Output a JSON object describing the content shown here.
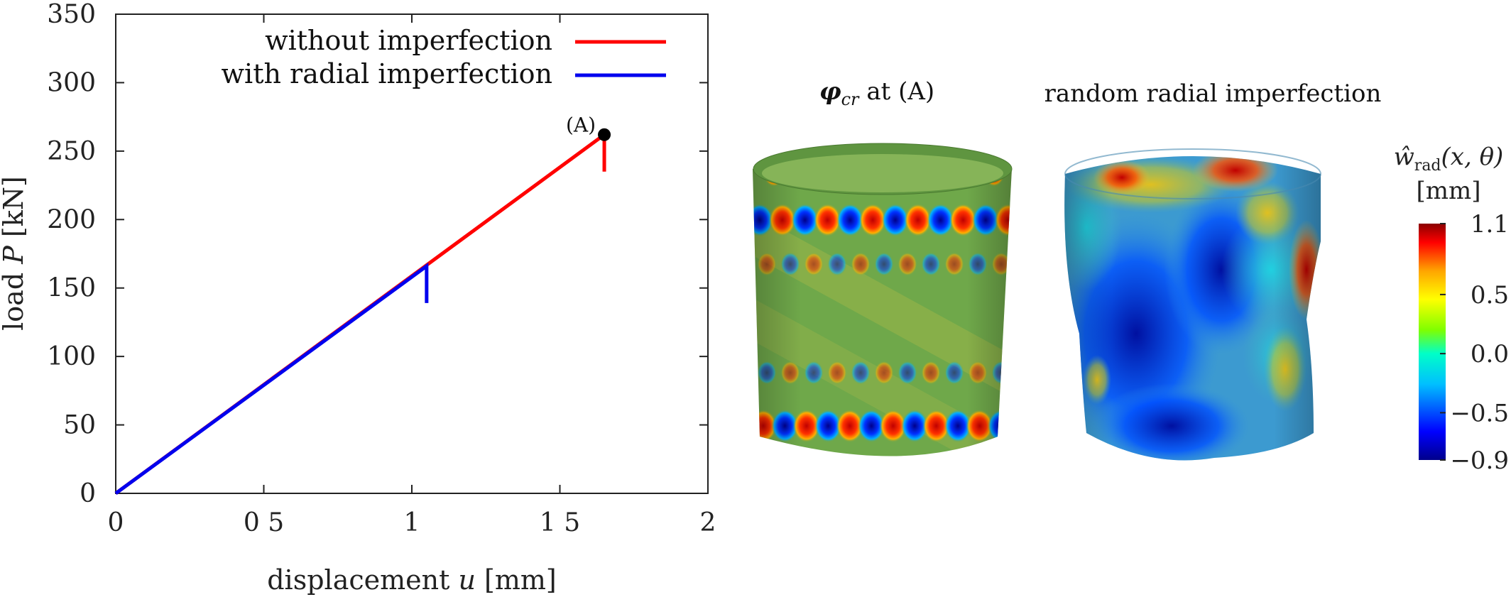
{
  "chart_data": {
    "type": "line",
    "xlabel_prefix": "displacement ",
    "xlabel_var": "u",
    "xlabel_unit": " [mm]",
    "ylabel_prefix": "load ",
    "ylabel_var": "P",
    "ylabel_unit": " [kN]",
    "xlim": [
      0,
      2
    ],
    "ylim": [
      0,
      350
    ],
    "xticks": [
      0,
      0.5,
      1,
      1.5,
      2
    ],
    "xtick_labels": [
      "0",
      "0 5",
      "1",
      "1 5",
      "2"
    ],
    "yticks": [
      0,
      50,
      100,
      150,
      200,
      250,
      300,
      350
    ],
    "ytick_labels": [
      "0",
      "50",
      "100",
      "150",
      "200",
      "250",
      "300",
      "350"
    ],
    "series": [
      {
        "name": "without imperfection",
        "color": "#ff0000",
        "x": [
          0,
          1.65,
          1.65
        ],
        "y": [
          0,
          262,
          235
        ]
      },
      {
        "name": "with radial imperfection",
        "color": "#0000ee",
        "x": [
          0,
          1.05,
          1.05
        ],
        "y": [
          0,
          166,
          139
        ]
      }
    ],
    "annotation": {
      "label": "(A)",
      "x": 1.65,
      "y": 262
    },
    "legend_position": "top-right",
    "grid": false
  },
  "panels": {
    "left_title_symbol": "φ",
    "left_title_sub": "cr",
    "left_title_rest": " at (A)",
    "right_title": "random radial imperfection"
  },
  "colorbar": {
    "label_w": "ŵ",
    "label_sub": "rad",
    "label_args": "(x, θ)",
    "unit": "[mm]",
    "tick_labels": [
      "1.1",
      "0.5",
      "0.0",
      "−0.5",
      "−0.9"
    ],
    "tick_values": [
      1.1,
      0.5,
      0.0,
      -0.5,
      -0.9
    ],
    "range": [
      -0.9,
      1.1
    ]
  },
  "colors": {
    "axis": "#222222",
    "colormap": [
      "#00008b",
      "#0000ff",
      "#00bfff",
      "#00ffc8",
      "#7fff00",
      "#ffff00",
      "#ffa500",
      "#ff0000",
      "#8b0000"
    ],
    "surface_base": "#6fa84a"
  }
}
